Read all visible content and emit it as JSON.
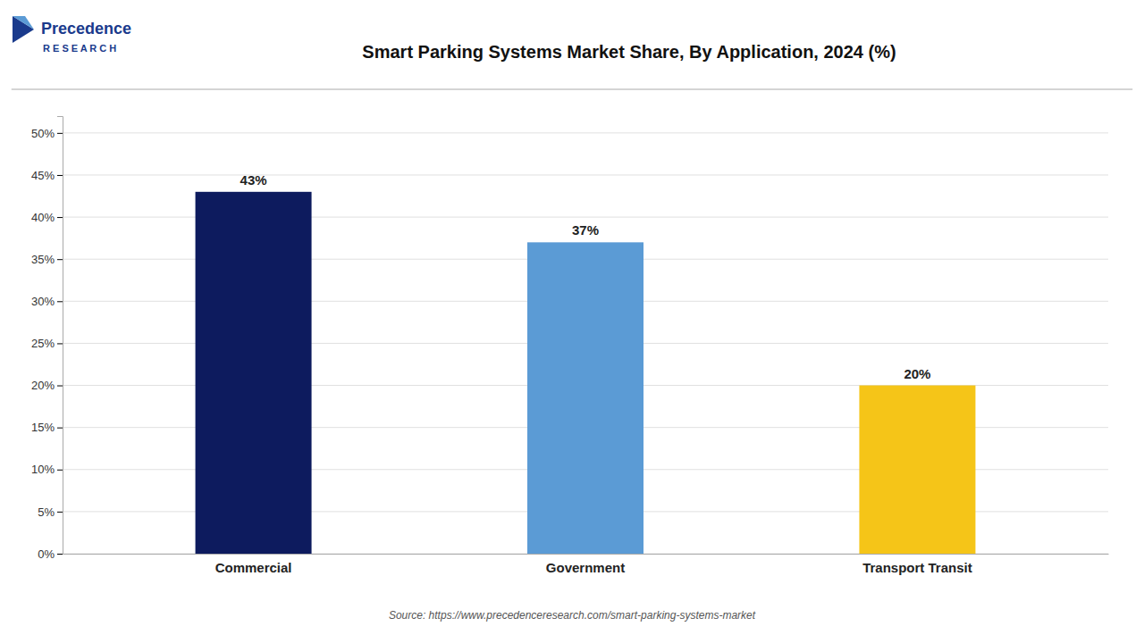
{
  "chart_data": {
    "type": "bar",
    "title": "Smart Parking Systems Market Share, By Application, 2024 (%)",
    "categories": [
      "Commercial",
      "Government",
      "Transport Transit"
    ],
    "values": [
      43,
      37,
      20
    ],
    "value_labels": [
      "43%",
      "37%",
      "20%"
    ],
    "colors": [
      "#0d1b5e",
      "#5b9bd5",
      "#f5c518"
    ],
    "ylim": [
      0,
      52
    ],
    "yticks": [
      {
        "value": 0,
        "label": "0%"
      },
      {
        "value": 5,
        "label": "5%"
      },
      {
        "value": 10,
        "label": "10%"
      },
      {
        "value": 15,
        "label": "15%"
      },
      {
        "value": 20,
        "label": "20%"
      },
      {
        "value": 25,
        "label": "25%"
      },
      {
        "value": 30,
        "label": "30%"
      },
      {
        "value": 35,
        "label": "35%"
      },
      {
        "value": 40,
        "label": "40%"
      },
      {
        "value": 45,
        "label": "45%"
      },
      {
        "value": 50,
        "label": "50%"
      }
    ],
    "grid": true,
    "data_labels": true,
    "annotations": [
      "Source: https://www.precedenceresearch.com/smart-parking-systems-market",
      "Precedence",
      "R E S E A R C H"
    ]
  }
}
